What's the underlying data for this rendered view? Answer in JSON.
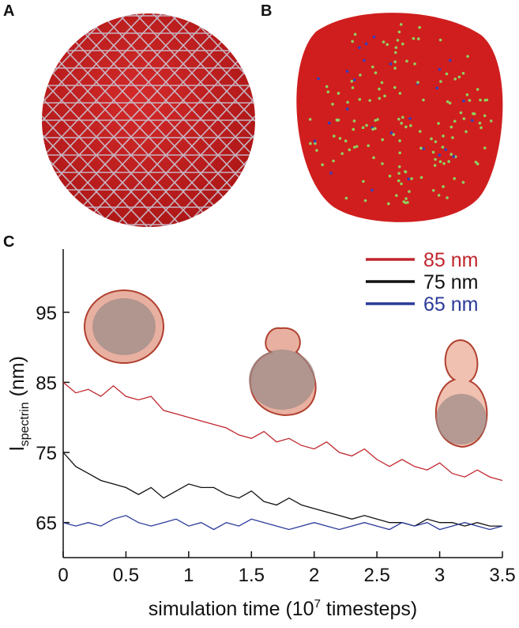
{
  "panel_labels": [
    "A",
    "B"
  ],
  "chart_data": {
    "type": "line",
    "panel_label": "C",
    "xlabel_parts": [
      "simulation time (10",
      "7",
      " timesteps)"
    ],
    "ylabel_parts": [
      "l",
      "spectrin",
      " (nm)"
    ],
    "x": [
      0,
      0.1,
      0.2,
      0.3,
      0.4,
      0.5,
      0.6,
      0.7,
      0.8,
      0.9,
      1.0,
      1.1,
      1.2,
      1.3,
      1.4,
      1.5,
      1.6,
      1.7,
      1.8,
      1.9,
      2.0,
      2.1,
      2.2,
      2.3,
      2.4,
      2.5,
      2.6,
      2.7,
      2.8,
      2.9,
      3.0,
      3.1,
      3.2,
      3.3,
      3.4,
      3.5
    ],
    "series": [
      {
        "name": "85 nm",
        "color": "#c0262d",
        "values": [
          85,
          83.5,
          84,
          83,
          84.5,
          83,
          82.5,
          83,
          81,
          80.5,
          80,
          79.5,
          79,
          78.5,
          77.5,
          77,
          78,
          76.5,
          77,
          76,
          75.5,
          76.5,
          75,
          74.5,
          75.5,
          74,
          73,
          74,
          73,
          72.5,
          73.5,
          72,
          71.5,
          72.5,
          71.5,
          71
        ]
      },
      {
        "name": "75 nm",
        "color": "#111111",
        "values": [
          75,
          73,
          72,
          71,
          70.5,
          70,
          69,
          70,
          68.5,
          69.5,
          70.5,
          70,
          70,
          69,
          68.5,
          69.5,
          68,
          67.5,
          68.5,
          67.5,
          67,
          66.5,
          66,
          65.5,
          66,
          65.5,
          65,
          65,
          64.5,
          65.5,
          65,
          65,
          64.5,
          65,
          64.5,
          64.5
        ]
      },
      {
        "name": "65 nm",
        "color": "#2b3a9a",
        "values": [
          65,
          64.5,
          65,
          64.5,
          65.5,
          66,
          65,
          64.5,
          65,
          65.5,
          64.5,
          65,
          64,
          65,
          64.5,
          65.5,
          65,
          64.5,
          64,
          64.5,
          65,
          64.5,
          64,
          64.5,
          65,
          64.5,
          64,
          65,
          64.5,
          65,
          64,
          64.5,
          65,
          64.5,
          64,
          64.5
        ]
      }
    ],
    "xlim": [
      0,
      3.5
    ],
    "xticks": [
      0,
      0.5,
      1,
      1.5,
      2,
      2.5,
      3,
      3.5
    ],
    "ylim": [
      60,
      104
    ],
    "yticks": [
      65,
      75,
      85,
      95
    ],
    "legend": "upper right"
  }
}
